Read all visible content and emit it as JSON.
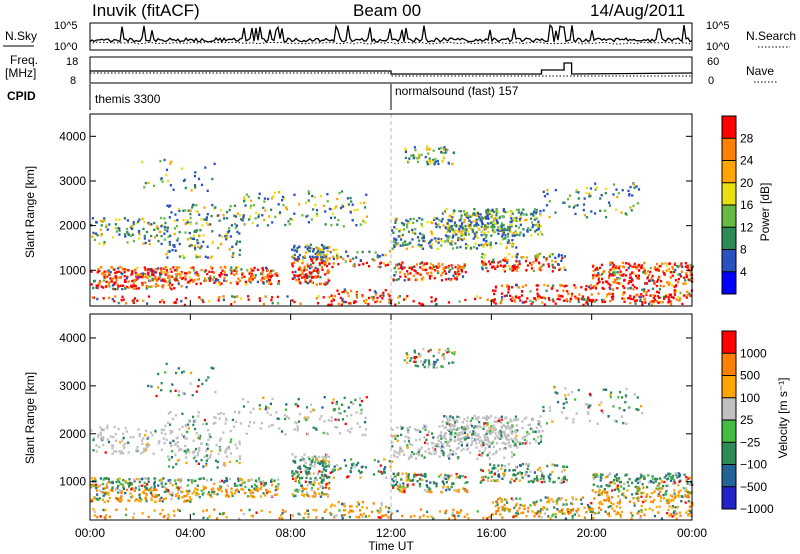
{
  "header": {
    "station": "Inuvik (fitACF)",
    "beam": "Beam 00",
    "date": "14/Aug/2011"
  },
  "top_panel": {
    "left_label": "N.Sky",
    "left_ticks": [
      "10^5",
      "10^0"
    ],
    "right_ticks": [
      "10^5",
      "10^0"
    ],
    "right_label": "N.Search"
  },
  "freq_panel": {
    "left_label_1": "Freq.",
    "left_label_2": "[MHz]",
    "left_ticks": [
      "18",
      "8"
    ],
    "right_ticks": [
      "60",
      "0"
    ],
    "right_label": "Nave"
  },
  "cpid": {
    "label": "CPID",
    "segments": [
      {
        "start_hour": 0,
        "text": "themis 3300"
      },
      {
        "start_hour": 12,
        "text": "normalsound (fast) 157"
      }
    ]
  },
  "chart_data": [
    {
      "type": "heatmap",
      "title": "Power",
      "ylabel": "Slant Range [km]",
      "yticks": [
        "1000",
        "2000",
        "3000",
        "4000"
      ],
      "ylim": [
        200,
        4500
      ],
      "colorbar_label": "Power [dB]",
      "colorbar_ticks": [
        "4",
        "8",
        "12",
        "16",
        "20",
        "24",
        "28"
      ],
      "colorbar_colors": [
        "#0000ff",
        "#2a52be",
        "#2e8b57",
        "#66bb44",
        "#e8e010",
        "#ffa500",
        "#ff7f00",
        "#ff0000"
      ]
    },
    {
      "type": "heatmap",
      "title": "Velocity",
      "ylabel": "Slant Range [km]",
      "yticks": [
        "1000",
        "2000",
        "3000",
        "4000"
      ],
      "ylim": [
        200,
        4500
      ],
      "colorbar_label": "Velocity [m s⁻¹]",
      "colorbar_ticks": [
        "1000",
        "500",
        "100",
        "25",
        "−25",
        "−100",
        "−500",
        "−1000"
      ],
      "colorbar_colors": [
        "#2323c8",
        "#236496",
        "#2e8b57",
        "#44bb44",
        "#c0c0c0",
        "#ffa500",
        "#ff7f00",
        "#ff0000"
      ]
    }
  ],
  "xaxis": {
    "ticks": [
      "00:00",
      "04:00",
      "08:00",
      "12:00",
      "16:00",
      "20:00",
      "00:00"
    ],
    "label": "Time UT",
    "range_hours": [
      0,
      24
    ]
  }
}
